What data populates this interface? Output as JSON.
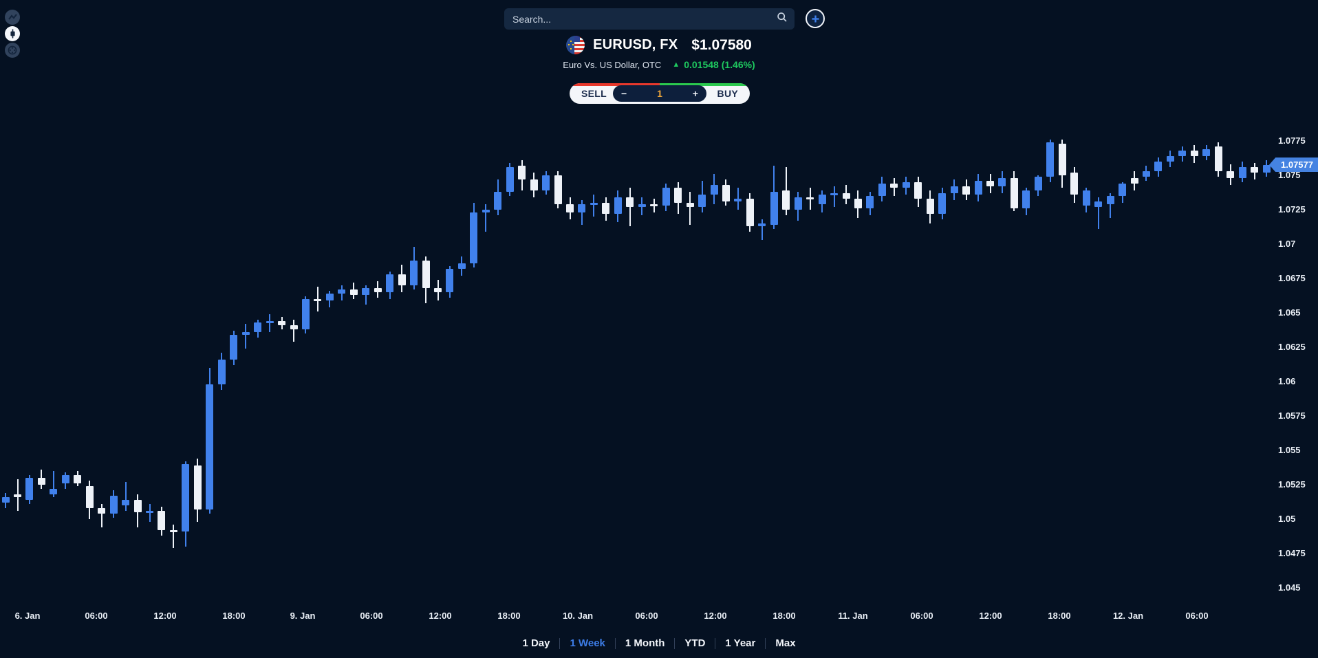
{
  "rail": {
    "icons": [
      {
        "name": "line-chart-icon",
        "active": false
      },
      {
        "name": "candlestick-chart-icon",
        "active": true
      },
      {
        "name": "target-icon",
        "active": false
      }
    ]
  },
  "search": {
    "placeholder": "Search..."
  },
  "instrument": {
    "symbol": "EURUSD, FX",
    "price": "$1.07580",
    "name": "Euro Vs. US Dollar, OTC",
    "change_arrow": "▲",
    "change": "0.01548 (1.46%)",
    "change_color": "#1ec95f"
  },
  "trade": {
    "sell_label": "SELL",
    "buy_label": "BUY",
    "quantity": "1",
    "minus_label": "−",
    "plus_label": "+",
    "sell_color": "#e8382c",
    "buy_color": "#2bc94e",
    "quantity_color": "#f2a93b"
  },
  "chart_data": {
    "type": "candlestick",
    "up_color": "#4181ec",
    "down_color": "#eef2f8",
    "last_price": {
      "label": "1.07577",
      "value": 1.07577,
      "tag_color": "#4583e2"
    },
    "y_axis": {
      "max": 1.0775,
      "min": 1.045,
      "step": 0.0025,
      "labels": [
        "1.0775",
        "1.075",
        "1.0725",
        "1.07",
        "1.0675",
        "1.065",
        "1.0625",
        "1.06",
        "1.0575",
        "1.055",
        "1.0525",
        "1.05",
        "1.0475",
        "1.045"
      ]
    },
    "x_axis": {
      "labels": [
        "6. Jan",
        "06:00",
        "12:00",
        "18:00",
        "9. Jan",
        "06:00",
        "12:00",
        "18:00",
        "10. Jan",
        "06:00",
        "12:00",
        "18:00",
        "11. Jan",
        "06:00",
        "12:00",
        "18:00",
        "12. Jan",
        "06:00"
      ]
    },
    "candles": [
      [
        1.0512,
        1.0519,
        1.0508,
        1.0516
      ],
      [
        1.0518,
        1.0529,
        1.0506,
        1.0516
      ],
      [
        1.0514,
        1.0532,
        1.0511,
        1.053
      ],
      [
        1.053,
        1.0536,
        1.0522,
        1.0525
      ],
      [
        1.0518,
        1.0535,
        1.0516,
        1.0522
      ],
      [
        1.0526,
        1.0534,
        1.0522,
        1.0532
      ],
      [
        1.0532,
        1.0535,
        1.0524,
        1.0526
      ],
      [
        1.0524,
        1.0528,
        1.05,
        1.0508
      ],
      [
        1.0508,
        1.0511,
        1.0494,
        1.0504
      ],
      [
        1.0504,
        1.0521,
        1.0501,
        1.0517
      ],
      [
        1.051,
        1.0527,
        1.0506,
        1.0514
      ],
      [
        1.0514,
        1.0518,
        1.0494,
        1.0505
      ],
      [
        1.0505,
        1.0511,
        1.0498,
        1.0506
      ],
      [
        1.0506,
        1.0509,
        1.0488,
        1.0492
      ],
      [
        1.0492,
        1.0496,
        1.0479,
        1.0491
      ],
      [
        1.0491,
        1.0542,
        1.048,
        1.054
      ],
      [
        1.0539,
        1.0544,
        1.0498,
        1.0507
      ],
      [
        1.0507,
        1.061,
        1.0504,
        1.0598
      ],
      [
        1.0598,
        1.0621,
        1.0594,
        1.0616
      ],
      [
        1.0616,
        1.0637,
        1.0612,
        1.0634
      ],
      [
        1.0634,
        1.0642,
        1.0624,
        1.0636
      ],
      [
        1.0636,
        1.0645,
        1.0632,
        1.0643
      ],
      [
        1.0643,
        1.0649,
        1.0636,
        1.0644
      ],
      [
        1.0644,
        1.0647,
        1.0638,
        1.0641
      ],
      [
        1.0641,
        1.0645,
        1.0629,
        1.0638
      ],
      [
        1.0638,
        1.0662,
        1.0635,
        1.066
      ],
      [
        1.066,
        1.0669,
        1.0651,
        1.0659
      ],
      [
        1.0659,
        1.0666,
        1.0654,
        1.0664
      ],
      [
        1.0664,
        1.067,
        1.0659,
        1.0667
      ],
      [
        1.0667,
        1.0672,
        1.066,
        1.0663
      ],
      [
        1.0663,
        1.067,
        1.0656,
        1.0668
      ],
      [
        1.0668,
        1.0673,
        1.0661,
        1.0665
      ],
      [
        1.0665,
        1.068,
        1.066,
        1.0678
      ],
      [
        1.0678,
        1.0685,
        1.0665,
        1.067
      ],
      [
        1.067,
        1.0698,
        1.0667,
        1.0688
      ],
      [
        1.0688,
        1.0691,
        1.0657,
        1.0668
      ],
      [
        1.0668,
        1.0674,
        1.0659,
        1.0665
      ],
      [
        1.0665,
        1.0684,
        1.0661,
        1.0682
      ],
      [
        1.0682,
        1.0691,
        1.0677,
        1.0686
      ],
      [
        1.0686,
        1.073,
        1.0683,
        1.0723
      ],
      [
        1.0723,
        1.0729,
        1.0709,
        1.0725
      ],
      [
        1.0725,
        1.0747,
        1.0721,
        1.0738
      ],
      [
        1.0738,
        1.0759,
        1.0735,
        1.0756
      ],
      [
        1.0757,
        1.0761,
        1.0739,
        1.0747
      ],
      [
        1.0747,
        1.0752,
        1.0734,
        1.0739
      ],
      [
        1.0739,
        1.0753,
        1.0736,
        1.075
      ],
      [
        1.075,
        1.0753,
        1.0726,
        1.0729
      ],
      [
        1.0729,
        1.0734,
        1.0718,
        1.0723
      ],
      [
        1.0723,
        1.0732,
        1.0714,
        1.0729
      ],
      [
        1.0729,
        1.0736,
        1.072,
        1.073
      ],
      [
        1.073,
        1.0734,
        1.0717,
        1.0722
      ],
      [
        1.0722,
        1.0739,
        1.0716,
        1.0734
      ],
      [
        1.0734,
        1.0741,
        1.0713,
        1.0727
      ],
      [
        1.0727,
        1.0734,
        1.0721,
        1.0729
      ],
      [
        1.0729,
        1.0733,
        1.0723,
        1.0728
      ],
      [
        1.0728,
        1.0744,
        1.0724,
        1.0741
      ],
      [
        1.0741,
        1.0745,
        1.0722,
        1.073
      ],
      [
        1.073,
        1.0738,
        1.0714,
        1.0727
      ],
      [
        1.0727,
        1.0746,
        1.0723,
        1.0736
      ],
      [
        1.0736,
        1.0751,
        1.0729,
        1.0743
      ],
      [
        1.0743,
        1.0747,
        1.0728,
        1.0731
      ],
      [
        1.0731,
        1.0741,
        1.0725,
        1.0733
      ],
      [
        1.0733,
        1.0737,
        1.0709,
        1.0713
      ],
      [
        1.0713,
        1.0718,
        1.0703,
        1.0715
      ],
      [
        1.0714,
        1.0757,
        1.0711,
        1.0738
      ],
      [
        1.0739,
        1.0756,
        1.0721,
        1.0725
      ],
      [
        1.0725,
        1.0738,
        1.0717,
        1.0734
      ],
      [
        1.0734,
        1.0741,
        1.0725,
        1.0733
      ],
      [
        1.0729,
        1.0739,
        1.0723,
        1.0736
      ],
      [
        1.0736,
        1.0742,
        1.0727,
        1.0737
      ],
      [
        1.0737,
        1.0743,
        1.0729,
        1.0733
      ],
      [
        1.0733,
        1.0739,
        1.0719,
        1.0726
      ],
      [
        1.0726,
        1.0738,
        1.0721,
        1.0735
      ],
      [
        1.0735,
        1.0749,
        1.0731,
        1.0744
      ],
      [
        1.0744,
        1.0748,
        1.0735,
        1.0741
      ],
      [
        1.0741,
        1.0749,
        1.0736,
        1.0745
      ],
      [
        1.0745,
        1.0749,
        1.0727,
        1.0733
      ],
      [
        1.0733,
        1.0739,
        1.0715,
        1.0722
      ],
      [
        1.0722,
        1.0741,
        1.0718,
        1.0737
      ],
      [
        1.0737,
        1.0747,
        1.0732,
        1.0742
      ],
      [
        1.0742,
        1.0747,
        1.0732,
        1.0736
      ],
      [
        1.0736,
        1.0751,
        1.0731,
        1.0746
      ],
      [
        1.0746,
        1.0751,
        1.0737,
        1.0742
      ],
      [
        1.0742,
        1.0753,
        1.0737,
        1.0748
      ],
      [
        1.0748,
        1.0753,
        1.0724,
        1.0726
      ],
      [
        1.0726,
        1.0741,
        1.0721,
        1.0739
      ],
      [
        1.0739,
        1.075,
        1.0735,
        1.0749
      ],
      [
        1.0749,
        1.0776,
        1.0745,
        1.0774
      ],
      [
        1.0773,
        1.0776,
        1.0741,
        1.075
      ],
      [
        1.0752,
        1.0756,
        1.073,
        1.0736
      ],
      [
        1.0728,
        1.0741,
        1.0723,
        1.0739
      ],
      [
        1.0727,
        1.0734,
        1.0711,
        1.0731
      ],
      [
        1.0729,
        1.0737,
        1.0719,
        1.0735
      ],
      [
        1.0735,
        1.0745,
        1.073,
        1.0744
      ],
      [
        1.0748,
        1.0753,
        1.0739,
        1.0744
      ],
      [
        1.0749,
        1.0757,
        1.0746,
        1.0753
      ],
      [
        1.0753,
        1.0763,
        1.0749,
        1.076
      ],
      [
        1.076,
        1.0768,
        1.0756,
        1.0764
      ],
      [
        1.0764,
        1.0771,
        1.076,
        1.0768
      ],
      [
        1.0768,
        1.0772,
        1.0759,
        1.0764
      ],
      [
        1.0764,
        1.0772,
        1.0761,
        1.0769
      ],
      [
        1.0771,
        1.0774,
        1.0749,
        1.0753
      ],
      [
        1.0753,
        1.0758,
        1.0743,
        1.0748
      ],
      [
        1.0748,
        1.076,
        1.0745,
        1.0756
      ],
      [
        1.0756,
        1.0759,
        1.0747,
        1.0752
      ],
      [
        1.0752,
        1.0761,
        1.0749,
        1.07577
      ]
    ]
  },
  "timeframes": {
    "active_color": "#3d7de8",
    "items": [
      {
        "label": "1 Day",
        "active": false
      },
      {
        "label": "1 Week",
        "active": true
      },
      {
        "label": "1 Month",
        "active": false
      },
      {
        "label": "YTD",
        "active": false
      },
      {
        "label": "1 Year",
        "active": false
      },
      {
        "label": "Max",
        "active": false
      }
    ]
  }
}
